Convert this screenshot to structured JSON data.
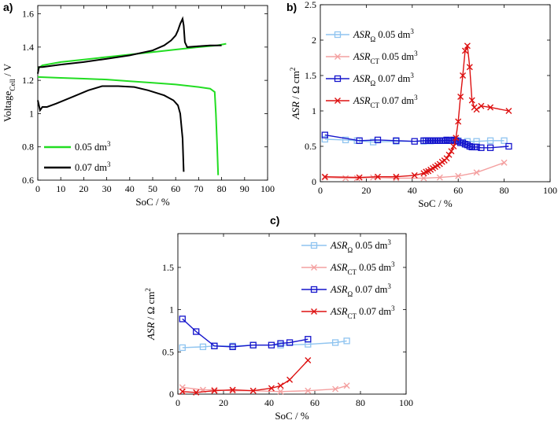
{
  "chart_data": [
    {
      "id": "a",
      "type": "line",
      "panel_label": "a)",
      "xlabel": "SoC / %",
      "ylabel_main": "Voltage",
      "ylabel_sub": "Cell",
      "ylabel_tail": " / V",
      "xlim": [
        0,
        100
      ],
      "ylim": [
        0.6,
        1.65
      ],
      "xticks": [
        0,
        10,
        20,
        30,
        40,
        50,
        60,
        70,
        80,
        90,
        100
      ],
      "yticks": [
        0.6,
        0.8,
        1,
        1.2,
        1.4,
        1.6
      ],
      "ytick_labels": [
        "0.6",
        "0.8",
        "1",
        "1.2",
        "1.4",
        "1.6"
      ],
      "legend_position": "bottom-left",
      "series": [
        {
          "name": "0.05 dm",
          "sup": "3",
          "color": "#22dd22",
          "segments": [
            [
              [
                0,
                1.27
              ],
              [
                2,
                1.29
              ],
              [
                10,
                1.31
              ],
              [
                20,
                1.325
              ],
              [
                30,
                1.34
              ],
              [
                40,
                1.355
              ],
              [
                50,
                1.37
              ],
              [
                60,
                1.385
              ],
              [
                70,
                1.4
              ],
              [
                78,
                1.41
              ],
              [
                82,
                1.42
              ]
            ],
            [
              [
                0,
                1.22
              ],
              [
                10,
                1.215
              ],
              [
                20,
                1.21
              ],
              [
                30,
                1.205
              ],
              [
                40,
                1.195
              ],
              [
                50,
                1.185
              ],
              [
                60,
                1.175
              ],
              [
                70,
                1.16
              ],
              [
                75,
                1.15
              ],
              [
                77,
                1.13
              ],
              [
                77.5,
                1.0
              ],
              [
                78,
                0.82
              ],
              [
                78.5,
                0.63
              ]
            ]
          ]
        },
        {
          "name": "0.07 dm",
          "sup": "3",
          "color": "#000000",
          "segments": [
            [
              [
                0,
                1.24
              ],
              [
                0.5,
                1.28
              ],
              [
                2,
                1.28
              ],
              [
                10,
                1.295
              ],
              [
                20,
                1.31
              ],
              [
                30,
                1.33
              ],
              [
                40,
                1.35
              ],
              [
                50,
                1.38
              ],
              [
                55,
                1.41
              ],
              [
                58,
                1.44
              ],
              [
                60,
                1.47
              ],
              [
                61,
                1.5
              ],
              [
                62,
                1.54
              ],
              [
                63,
                1.57
              ],
              [
                63.5,
                1.53
              ],
              [
                64,
                1.43
              ],
              [
                65,
                1.4
              ],
              [
                70,
                1.405
              ],
              [
                75,
                1.41
              ],
              [
                80,
                1.41
              ]
            ],
            [
              [
                0,
                1.08
              ],
              [
                1,
                1.02
              ],
              [
                2,
                1.04
              ],
              [
                4,
                1.04
              ],
              [
                8,
                1.06
              ],
              [
                15,
                1.1
              ],
              [
                22,
                1.14
              ],
              [
                28,
                1.165
              ],
              [
                35,
                1.165
              ],
              [
                42,
                1.16
              ],
              [
                48,
                1.14
              ],
              [
                55,
                1.11
              ],
              [
                59,
                1.08
              ],
              [
                61,
                1.05
              ],
              [
                62,
                1.0
              ],
              [
                63,
                0.85
              ],
              [
                63.5,
                0.65
              ]
            ]
          ]
        }
      ]
    },
    {
      "id": "b",
      "type": "line",
      "panel_label": "b)",
      "xlabel": "SoC / %",
      "ylabel": "ASR / Ω cm",
      "ylabel_sup": "2",
      "xlim": [
        0,
        100
      ],
      "ylim": [
        0,
        2.5
      ],
      "xticks": [
        0,
        20,
        40,
        60,
        80,
        100
      ],
      "yticks": [
        0,
        0.5,
        1,
        1.5,
        2,
        2.5
      ],
      "ytick_labels": [
        "0",
        "0.5",
        "1",
        "1.5",
        "2",
        "2.5"
      ],
      "legend_position": "top-left",
      "series": [
        {
          "name_main": "ASR",
          "name_sub": "Ω",
          "name_tail": " 0.05 dm",
          "name_sup": "3",
          "color": "#8fc4f0",
          "marker": "square",
          "x": [
            2,
            11,
            16,
            23,
            33,
            45,
            48,
            52,
            56,
            60,
            64,
            68,
            74,
            80
          ],
          "y": [
            0.6,
            0.59,
            0.58,
            0.56,
            0.57,
            0.57,
            0.575,
            0.58,
            0.58,
            0.58,
            0.57,
            0.57,
            0.58,
            0.58
          ]
        },
        {
          "name_main": "ASR",
          "name_sub": "CT",
          "name_tail": " 0.05 dm",
          "name_sup": "3",
          "color": "#f4a0a0",
          "marker": "x",
          "x": [
            2,
            11,
            16,
            23,
            33,
            45,
            52,
            60,
            68,
            80
          ],
          "y": [
            0.06,
            0.05,
            0.05,
            0.06,
            0.05,
            0.05,
            0.06,
            0.08,
            0.13,
            0.27
          ]
        },
        {
          "name_main": "ASR",
          "name_sub": "Ω",
          "name_tail": " 0.07 dm",
          "name_sup": "3",
          "color": "#1515cc",
          "marker": "square",
          "x": [
            2,
            17,
            25,
            33,
            41,
            45,
            46,
            47,
            48,
            49,
            50,
            51,
            52,
            53,
            54,
            55,
            56,
            57,
            58,
            59,
            60,
            61,
            62,
            63,
            64,
            65,
            66,
            67,
            68,
            70,
            74,
            82
          ],
          "y": [
            0.66,
            0.58,
            0.59,
            0.58,
            0.57,
            0.58,
            0.58,
            0.58,
            0.58,
            0.58,
            0.58,
            0.58,
            0.58,
            0.58,
            0.58,
            0.59,
            0.58,
            0.58,
            0.59,
            0.58,
            0.57,
            0.55,
            0.55,
            0.53,
            0.52,
            0.5,
            0.49,
            0.49,
            0.49,
            0.48,
            0.48,
            0.5
          ]
        },
        {
          "name_main": "ASR",
          "name_sub": "CT",
          "name_tail": " 0.07 dm",
          "name_sup": "3",
          "color": "#dd1111",
          "marker": "x",
          "x": [
            2,
            17,
            25,
            33,
            41,
            45,
            46,
            47,
            48,
            49,
            50,
            51,
            52,
            53,
            54,
            55,
            56,
            57,
            58,
            59,
            60,
            61,
            62,
            63,
            64,
            65,
            66,
            67,
            68,
            70,
            74,
            82
          ],
          "y": [
            0.07,
            0.06,
            0.07,
            0.07,
            0.09,
            0.12,
            0.14,
            0.15,
            0.17,
            0.19,
            0.21,
            0.23,
            0.25,
            0.28,
            0.3,
            0.33,
            0.38,
            0.43,
            0.5,
            0.62,
            0.85,
            1.2,
            1.5,
            1.85,
            1.92,
            1.62,
            1.15,
            1.05,
            1.02,
            1.07,
            1.05,
            1.0
          ]
        }
      ]
    },
    {
      "id": "c",
      "type": "line",
      "panel_label": "c)",
      "xlabel": "SoC / %",
      "ylabel": "ASR / Ω cm",
      "ylabel_sup": "2",
      "xlim": [
        0,
        100
      ],
      "ylim": [
        0,
        1.9
      ],
      "xticks": [
        0,
        20,
        40,
        60,
        80,
        100
      ],
      "yticks": [
        0,
        0.5,
        1,
        1.5
      ],
      "ytick_labels": [
        "0",
        "0.5",
        "1",
        "1.5"
      ],
      "legend_position": "top-right",
      "series": [
        {
          "name_main": "ASR",
          "name_sub": "Ω",
          "name_tail": " 0.05 dm",
          "name_sup": "3",
          "color": "#8fc4f0",
          "marker": "square",
          "x": [
            2,
            11,
            16,
            24,
            33,
            45,
            57,
            69,
            74
          ],
          "y": [
            0.55,
            0.56,
            0.57,
            0.57,
            0.58,
            0.58,
            0.59,
            0.61,
            0.63
          ]
        },
        {
          "name_main": "ASR",
          "name_sub": "CT",
          "name_tail": " 0.05 dm",
          "name_sup": "3",
          "color": "#f4a0a0",
          "marker": "x",
          "x": [
            2,
            11,
            16,
            24,
            33,
            45,
            57,
            69,
            74
          ],
          "y": [
            0.08,
            0.05,
            0.05,
            0.04,
            0.04,
            0.03,
            0.04,
            0.06,
            0.1
          ]
        },
        {
          "name_main": "ASR",
          "name_sub": "Ω",
          "name_tail": " 0.07 dm",
          "name_sup": "3",
          "color": "#1515cc",
          "marker": "square",
          "x": [
            2,
            8,
            16,
            24,
            33,
            41,
            45,
            49,
            57
          ],
          "y": [
            0.89,
            0.74,
            0.57,
            0.56,
            0.58,
            0.58,
            0.6,
            0.61,
            0.65
          ]
        },
        {
          "name_main": "ASR",
          "name_sub": "CT",
          "name_tail": " 0.07 dm",
          "name_sup": "3",
          "color": "#dd1111",
          "marker": "x",
          "x": [
            2,
            8,
            16,
            24,
            33,
            41,
            45,
            49,
            57
          ],
          "y": [
            0.03,
            0.02,
            0.04,
            0.05,
            0.04,
            0.07,
            0.1,
            0.17,
            0.4
          ]
        }
      ]
    }
  ]
}
